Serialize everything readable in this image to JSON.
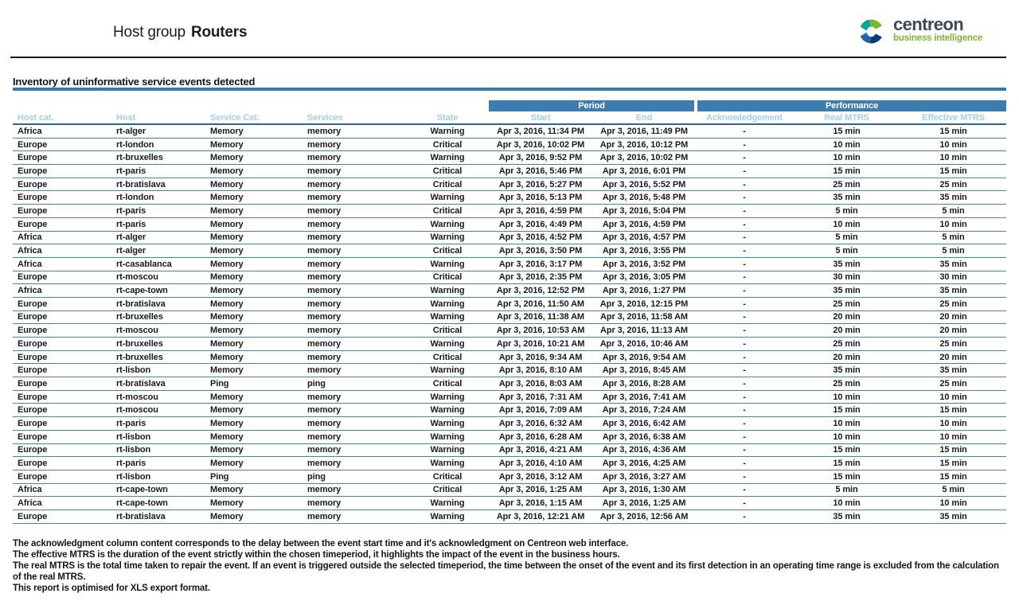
{
  "header": {
    "title_prefix": "Host group",
    "title_bold": "Routers"
  },
  "logo": {
    "brand": "centreon",
    "tagline": "business intelligence"
  },
  "section": {
    "title": "Inventory of uninformative service events detected"
  },
  "table": {
    "group_headers": {
      "period": "Period",
      "performance": "Performance"
    },
    "columns": [
      "Host cat.",
      "Host",
      "Service Cat.",
      "Services",
      "State",
      "Start",
      "End",
      "Acknowledgement",
      "Real MTRS",
      "Effective MTRS"
    ],
    "rows": [
      {
        "host_cat": "Africa",
        "host": "rt-alger",
        "service_cat": "Memory",
        "service": "memory",
        "state": "Warning",
        "start": "Apr 3, 2016, 11:34 PM",
        "end": "Apr 3, 2016, 11:49 PM",
        "ack": "-",
        "real_mtrs": "15 min",
        "effective_mtrs": "15 min"
      },
      {
        "host_cat": "Europe",
        "host": "rt-london",
        "service_cat": "Memory",
        "service": "memory",
        "state": "Critical",
        "start": "Apr 3, 2016, 10:02 PM",
        "end": "Apr 3, 2016, 10:12 PM",
        "ack": "-",
        "real_mtrs": "10 min",
        "effective_mtrs": "10 min"
      },
      {
        "host_cat": "Europe",
        "host": "rt-bruxelles",
        "service_cat": "Memory",
        "service": "memory",
        "state": "Warning",
        "start": "Apr 3, 2016, 9:52 PM",
        "end": "Apr 3, 2016, 10:02 PM",
        "ack": "-",
        "real_mtrs": "10 min",
        "effective_mtrs": "10 min"
      },
      {
        "host_cat": "Europe",
        "host": "rt-paris",
        "service_cat": "Memory",
        "service": "memory",
        "state": "Critical",
        "start": "Apr 3, 2016, 5:46 PM",
        "end": "Apr 3, 2016, 6:01 PM",
        "ack": "-",
        "real_mtrs": "15 min",
        "effective_mtrs": "15 min"
      },
      {
        "host_cat": "Europe",
        "host": "rt-bratislava",
        "service_cat": "Memory",
        "service": "memory",
        "state": "Critical",
        "start": "Apr 3, 2016, 5:27 PM",
        "end": "Apr 3, 2016, 5:52 PM",
        "ack": "-",
        "real_mtrs": "25 min",
        "effective_mtrs": "25 min"
      },
      {
        "host_cat": "Europe",
        "host": "rt-london",
        "service_cat": "Memory",
        "service": "memory",
        "state": "Warning",
        "start": "Apr 3, 2016, 5:13 PM",
        "end": "Apr 3, 2016, 5:48 PM",
        "ack": "-",
        "real_mtrs": "35 min",
        "effective_mtrs": "35 min"
      },
      {
        "host_cat": "Europe",
        "host": "rt-paris",
        "service_cat": "Memory",
        "service": "memory",
        "state": "Critical",
        "start": "Apr 3, 2016, 4:59 PM",
        "end": "Apr 3, 2016, 5:04 PM",
        "ack": "-",
        "real_mtrs": "5 min",
        "effective_mtrs": "5 min"
      },
      {
        "host_cat": "Europe",
        "host": "rt-paris",
        "service_cat": "Memory",
        "service": "memory",
        "state": "Warning",
        "start": "Apr 3, 2016, 4:49 PM",
        "end": "Apr 3, 2016, 4:59 PM",
        "ack": "-",
        "real_mtrs": "10 min",
        "effective_mtrs": "10 min"
      },
      {
        "host_cat": "Africa",
        "host": "rt-alger",
        "service_cat": "Memory",
        "service": "memory",
        "state": "Warning",
        "start": "Apr 3, 2016, 4:52 PM",
        "end": "Apr 3, 2016, 4:57 PM",
        "ack": "-",
        "real_mtrs": "5 min",
        "effective_mtrs": "5 min"
      },
      {
        "host_cat": "Africa",
        "host": "rt-alger",
        "service_cat": "Memory",
        "service": "memory",
        "state": "Critical",
        "start": "Apr 3, 2016, 3:50 PM",
        "end": "Apr 3, 2016, 3:55 PM",
        "ack": "-",
        "real_mtrs": "5 min",
        "effective_mtrs": "5 min"
      },
      {
        "host_cat": "Africa",
        "host": "rt-casablanca",
        "service_cat": "Memory",
        "service": "memory",
        "state": "Warning",
        "start": "Apr 3, 2016, 3:17 PM",
        "end": "Apr 3, 2016, 3:52 PM",
        "ack": "-",
        "real_mtrs": "35 min",
        "effective_mtrs": "35 min"
      },
      {
        "host_cat": "Europe",
        "host": "rt-moscou",
        "service_cat": "Memory",
        "service": "memory",
        "state": "Critical",
        "start": "Apr 3, 2016, 2:35 PM",
        "end": "Apr 3, 2016, 3:05 PM",
        "ack": "-",
        "real_mtrs": "30 min",
        "effective_mtrs": "30 min"
      },
      {
        "host_cat": "Africa",
        "host": "rt-cape-town",
        "service_cat": "Memory",
        "service": "memory",
        "state": "Warning",
        "start": "Apr 3, 2016, 12:52 PM",
        "end": "Apr 3, 2016, 1:27 PM",
        "ack": "-",
        "real_mtrs": "35 min",
        "effective_mtrs": "35 min"
      },
      {
        "host_cat": "Europe",
        "host": "rt-bratislava",
        "service_cat": "Memory",
        "service": "memory",
        "state": "Warning",
        "start": "Apr 3, 2016, 11:50 AM",
        "end": "Apr 3, 2016, 12:15 PM",
        "ack": "-",
        "real_mtrs": "25 min",
        "effective_mtrs": "25 min"
      },
      {
        "host_cat": "Europe",
        "host": "rt-bruxelles",
        "service_cat": "Memory",
        "service": "memory",
        "state": "Warning",
        "start": "Apr 3, 2016, 11:38 AM",
        "end": "Apr 3, 2016, 11:58 AM",
        "ack": "-",
        "real_mtrs": "20 min",
        "effective_mtrs": "20 min"
      },
      {
        "host_cat": "Europe",
        "host": "rt-moscou",
        "service_cat": "Memory",
        "service": "memory",
        "state": "Critical",
        "start": "Apr 3, 2016, 10:53 AM",
        "end": "Apr 3, 2016, 11:13 AM",
        "ack": "-",
        "real_mtrs": "20 min",
        "effective_mtrs": "20 min"
      },
      {
        "host_cat": "Europe",
        "host": "rt-bruxelles",
        "service_cat": "Memory",
        "service": "memory",
        "state": "Warning",
        "start": "Apr 3, 2016, 10:21 AM",
        "end": "Apr 3, 2016, 10:46 AM",
        "ack": "-",
        "real_mtrs": "25 min",
        "effective_mtrs": "25 min"
      },
      {
        "host_cat": "Europe",
        "host": "rt-bruxelles",
        "service_cat": "Memory",
        "service": "memory",
        "state": "Critical",
        "start": "Apr 3, 2016, 9:34 AM",
        "end": "Apr 3, 2016, 9:54 AM",
        "ack": "-",
        "real_mtrs": "20 min",
        "effective_mtrs": "20 min"
      },
      {
        "host_cat": "Europe",
        "host": "rt-lisbon",
        "service_cat": "Memory",
        "service": "memory",
        "state": "Warning",
        "start": "Apr 3, 2016, 8:10 AM",
        "end": "Apr 3, 2016, 8:45 AM",
        "ack": "-",
        "real_mtrs": "35 min",
        "effective_mtrs": "35 min"
      },
      {
        "host_cat": "Europe",
        "host": "rt-bratislava",
        "service_cat": "Ping",
        "service": "ping",
        "state": "Critical",
        "start": "Apr 3, 2016, 8:03 AM",
        "end": "Apr 3, 2016, 8:28 AM",
        "ack": "-",
        "real_mtrs": "25 min",
        "effective_mtrs": "25 min"
      },
      {
        "host_cat": "Europe",
        "host": "rt-moscou",
        "service_cat": "Memory",
        "service": "memory",
        "state": "Warning",
        "start": "Apr 3, 2016, 7:31 AM",
        "end": "Apr 3, 2016, 7:41 AM",
        "ack": "-",
        "real_mtrs": "10 min",
        "effective_mtrs": "10 min"
      },
      {
        "host_cat": "Europe",
        "host": "rt-moscou",
        "service_cat": "Memory",
        "service": "memory",
        "state": "Warning",
        "start": "Apr 3, 2016, 7:09 AM",
        "end": "Apr 3, 2016, 7:24 AM",
        "ack": "-",
        "real_mtrs": "15 min",
        "effective_mtrs": "15 min"
      },
      {
        "host_cat": "Europe",
        "host": "rt-paris",
        "service_cat": "Memory",
        "service": "memory",
        "state": "Warning",
        "start": "Apr 3, 2016, 6:32 AM",
        "end": "Apr 3, 2016, 6:42 AM",
        "ack": "-",
        "real_mtrs": "10 min",
        "effective_mtrs": "10 min"
      },
      {
        "host_cat": "Europe",
        "host": "rt-lisbon",
        "service_cat": "Memory",
        "service": "memory",
        "state": "Warning",
        "start": "Apr 3, 2016, 6:28 AM",
        "end": "Apr 3, 2016, 6:38 AM",
        "ack": "-",
        "real_mtrs": "10 min",
        "effective_mtrs": "10 min"
      },
      {
        "host_cat": "Europe",
        "host": "rt-lisbon",
        "service_cat": "Memory",
        "service": "memory",
        "state": "Warning",
        "start": "Apr 3, 2016, 4:21 AM",
        "end": "Apr 3, 2016, 4:36 AM",
        "ack": "-",
        "real_mtrs": "15 min",
        "effective_mtrs": "15 min"
      },
      {
        "host_cat": "Europe",
        "host": "rt-paris",
        "service_cat": "Memory",
        "service": "memory",
        "state": "Warning",
        "start": "Apr 3, 2016, 4:10 AM",
        "end": "Apr 3, 2016, 4:25 AM",
        "ack": "-",
        "real_mtrs": "15 min",
        "effective_mtrs": "15 min"
      },
      {
        "host_cat": "Europe",
        "host": "rt-lisbon",
        "service_cat": "Ping",
        "service": "ping",
        "state": "Critical",
        "start": "Apr 3, 2016, 3:12 AM",
        "end": "Apr 3, 2016, 3:27 AM",
        "ack": "-",
        "real_mtrs": "15 min",
        "effective_mtrs": "15 min"
      },
      {
        "host_cat": "Africa",
        "host": "rt-cape-town",
        "service_cat": "Memory",
        "service": "memory",
        "state": "Critical",
        "start": "Apr 3, 2016, 1:25 AM",
        "end": "Apr 3, 2016, 1:30 AM",
        "ack": "-",
        "real_mtrs": "5 min",
        "effective_mtrs": "5 min"
      },
      {
        "host_cat": "Africa",
        "host": "rt-cape-town",
        "service_cat": "Memory",
        "service": "memory",
        "state": "Warning",
        "start": "Apr 3, 2016, 1:15 AM",
        "end": "Apr 3, 2016, 1:25 AM",
        "ack": "-",
        "real_mtrs": "10 min",
        "effective_mtrs": "10 min"
      },
      {
        "host_cat": "Europe",
        "host": "rt-bratislava",
        "service_cat": "Memory",
        "service": "memory",
        "state": "Warning",
        "start": "Apr 3, 2016, 12:21 AM",
        "end": "Apr 3, 2016, 12:56 AM",
        "ack": "-",
        "real_mtrs": "35 min",
        "effective_mtrs": "35 min"
      }
    ]
  },
  "footer": {
    "notes": [
      "The acknowledgment column content corresponds to the delay between the event start time and it's acknowledgment on Centreon web interface.",
      "The effective MTRS is the duration of the event strictly within the chosen timeperiod, it highlights the impact of the event in the business hours.",
      "The real MTRS is the total time taken to repair the event. If an event is triggered outside the selected timeperiod, the time between the onset of the event and its first detection in an operating time range is excluded from the calculation of the real MTRS.",
      "This report is optimised for XLS export format."
    ]
  },
  "colors": {
    "group_header_blue": "#3e7cae",
    "subheader_text_blue": "#9dd1ec",
    "row_divider_blue": "#4b81af",
    "section_rule_blue": "#3a79ae",
    "warning_orange": "#f9a13b",
    "critical_red": "#ee2d52",
    "brand_slate": "#3e4a54",
    "brand_green": "#7cb52b"
  }
}
